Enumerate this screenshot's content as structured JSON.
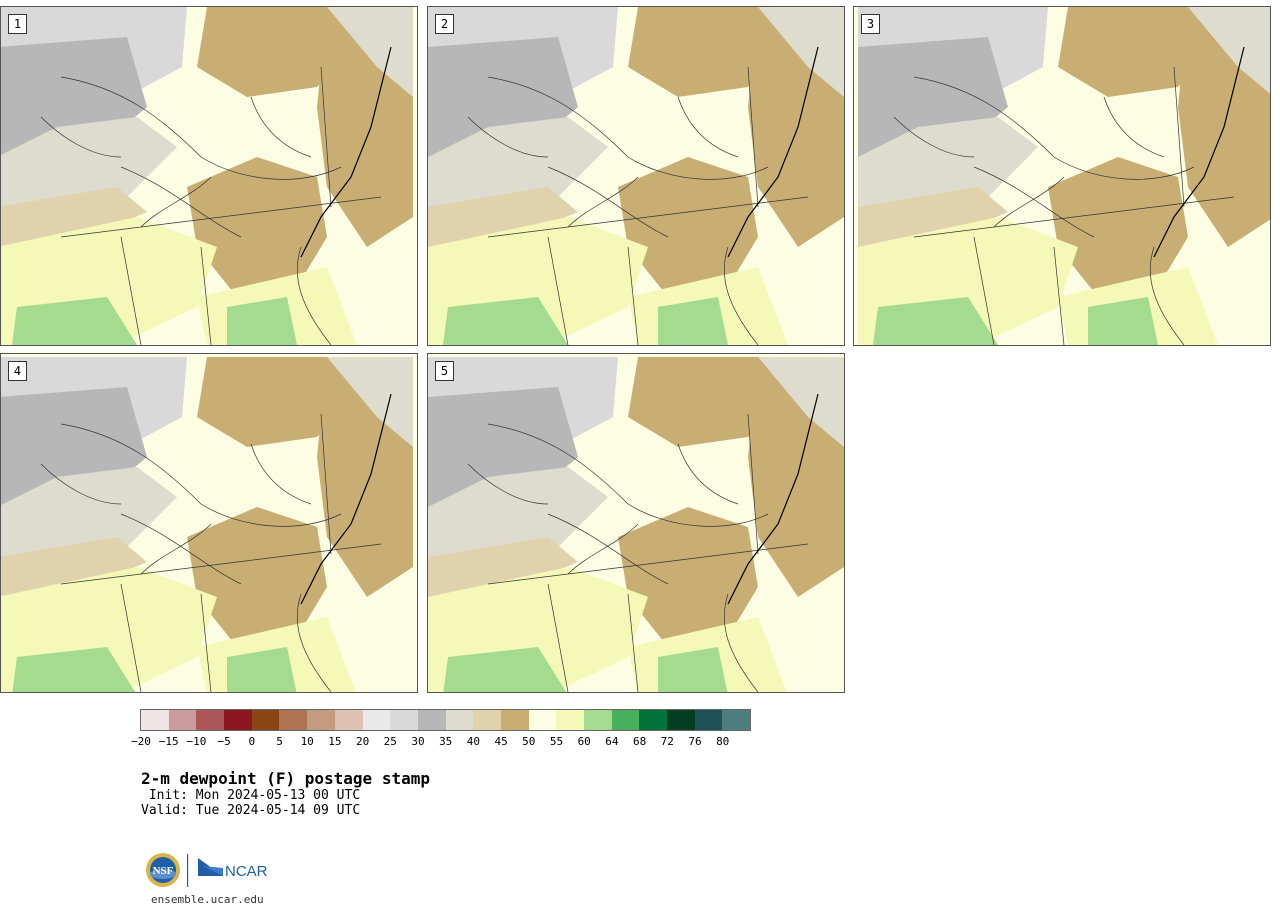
{
  "panels": [
    {
      "label": "1"
    },
    {
      "label": "2"
    },
    {
      "label": "3"
    },
    {
      "label": "4"
    },
    {
      "label": "5"
    }
  ],
  "colorbar": {
    "colors": [
      "#f0e3e3",
      "#cc9c9c",
      "#aa5757",
      "#8b1620",
      "#8b4513",
      "#ac7451",
      "#c49a80",
      "#dcc2b2",
      "#e9e9e9",
      "#d9d9d9",
      "#b7b7b7",
      "#dedccf",
      "#e0d2ac",
      "#c9ae74",
      "#fdfde4",
      "#f4f9b8",
      "#a5db8e",
      "#48b05c",
      "#00733a",
      "#033e22",
      "#1b5157",
      "#4c7e80"
    ],
    "ticks": [
      "−20",
      "−15",
      "−10",
      "−5",
      "0",
      "5",
      "10",
      "15",
      "20",
      "25",
      "30",
      "35",
      "40",
      "45",
      "50",
      "55",
      "60",
      "64",
      "68",
      "72",
      "76",
      "80"
    ]
  },
  "caption": {
    "title": "2-m dewpoint (F) postage stamp",
    "init": " Init: Mon 2024-05-13 00 UTC",
    "valid": "Valid: Tue 2024-05-14 09 UTC"
  },
  "logos": {
    "nsf": "NSF",
    "ncar": "NCAR"
  },
  "url": "ensemble.ucar.edu"
}
